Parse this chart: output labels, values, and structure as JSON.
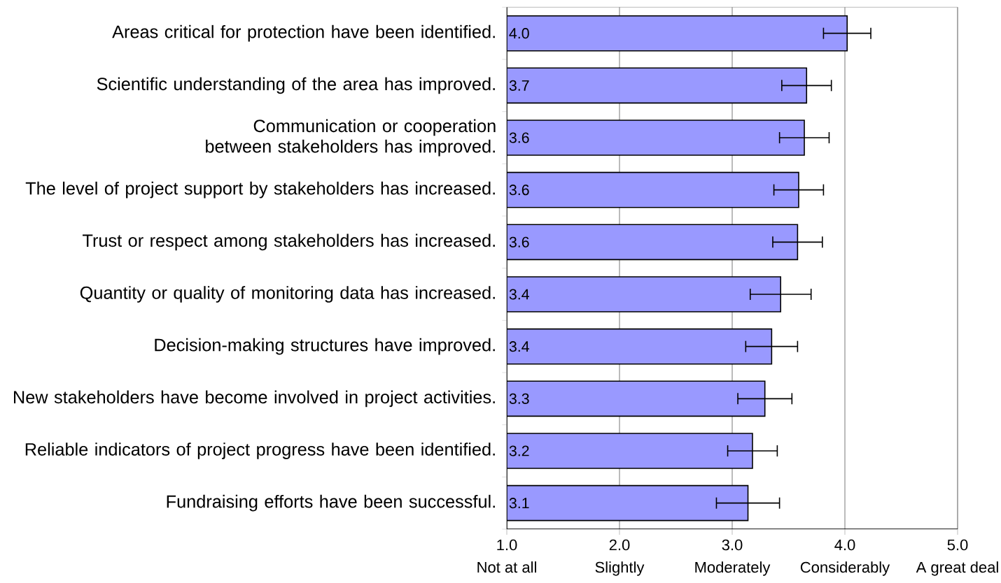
{
  "chart_data": {
    "type": "bar",
    "orientation": "horizontal",
    "categories": [
      "Areas critical for protection have been identified.",
      "Scientific understanding of the area has improved.",
      "Communication or cooperation between stakeholders has improved.",
      "The level of project support by stakeholders has increased.",
      "Trust or respect among stakeholders has increased.",
      "Quantity or quality of monitoring data has increased.",
      "Decision-making structures have improved.",
      "New stakeholders have become involved in project activities.",
      "Reliable indicators of project progress have been identified.",
      "Fundraising efforts have been successful."
    ],
    "values": [
      4.02,
      3.66,
      3.64,
      3.59,
      3.58,
      3.43,
      3.35,
      3.29,
      3.18,
      3.14
    ],
    "errors": [
      0.21,
      0.22,
      0.22,
      0.22,
      0.22,
      0.27,
      0.23,
      0.24,
      0.22,
      0.28
    ],
    "value_labels": [
      "4.0",
      "3.7",
      "3.6",
      "3.6",
      "3.6",
      "3.4",
      "3.4",
      "3.3",
      "3.2",
      "3.1"
    ],
    "color": "#9999ff",
    "xlim": [
      1,
      5
    ],
    "xticks": [
      {
        "value": 1,
        "label": "1.0\nNot at all"
      },
      {
        "value": 2,
        "label": "2.0\nSlightly"
      },
      {
        "value": 3,
        "label": "3.0\nModerately"
      },
      {
        "value": 4,
        "label": "4.0\nConsiderably"
      },
      {
        "value": 5,
        "label": "5.0\nA great deal"
      }
    ],
    "grid": "x"
  }
}
